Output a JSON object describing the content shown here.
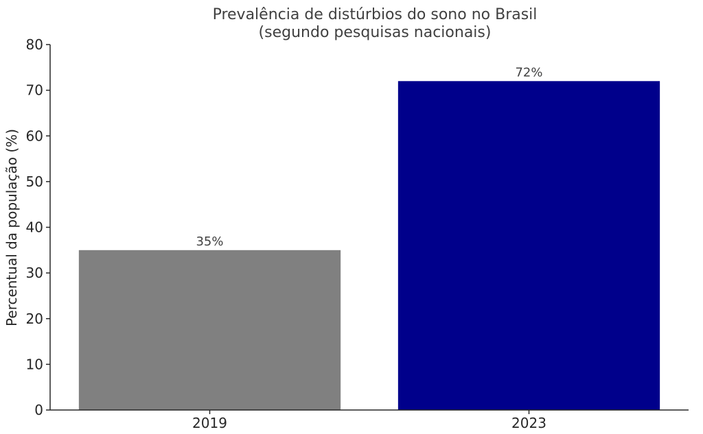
{
  "chart_data": {
    "type": "bar",
    "title": [
      "Prevalência de distúrbios do sono no Brasil",
      "(segundo pesquisas nacionais)"
    ],
    "xlabel": "",
    "ylabel": "Percentual da população (%)",
    "categories": [
      "2019",
      "2023"
    ],
    "values": [
      35,
      72
    ],
    "value_labels": [
      "35%",
      "72%"
    ],
    "colors": [
      "#808080",
      "#00008b"
    ],
    "ylim": [
      0,
      80
    ],
    "yticks": [
      0,
      10,
      20,
      30,
      40,
      50,
      60,
      70,
      80
    ],
    "grid": false,
    "legend": "none"
  }
}
